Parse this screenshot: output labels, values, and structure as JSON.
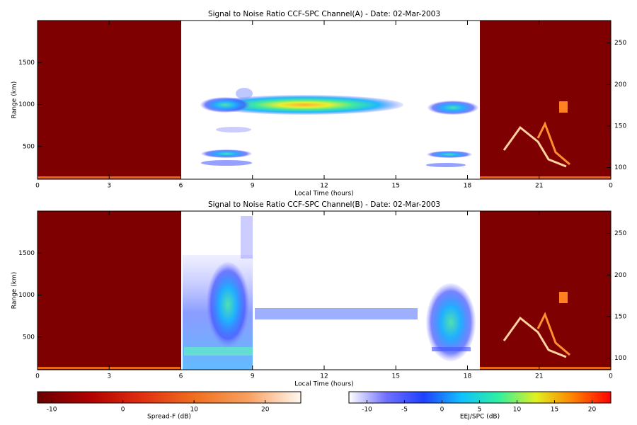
{
  "chart_data": [
    {
      "type": "heatmap",
      "title": "Signal to Noise Ratio CCF-SPC Channel(A) - Date: 02-Mar-2003",
      "xlabel": "Local Time (hours)",
      "ylabel": "Range (km)",
      "xlim": [
        0,
        24
      ],
      "xticks": [
        0,
        3,
        6,
        9,
        12,
        15,
        18,
        21,
        {
          "value": 24,
          "label": "0"
        }
      ],
      "ylim": [
        110,
        2000
      ],
      "yticks": [
        500,
        1000,
        1500
      ],
      "y2lim": [
        86,
        277
      ],
      "y2ticks": [
        100,
        150,
        200,
        250
      ]
    },
    {
      "type": "heatmap",
      "title": "Signal to Noise Ratio CCF-SPC Channel(B) - Date: 02-Mar-2003",
      "xlabel": "Local Time (hours)",
      "ylabel": "Range (km)",
      "xlim": [
        0,
        24
      ],
      "xticks": [
        0,
        3,
        6,
        9,
        12,
        15,
        18,
        21,
        {
          "value": 24,
          "label": "0"
        }
      ],
      "ylim": [
        110,
        2000
      ],
      "yticks": [
        500,
        1000,
        1500
      ],
      "y2lim": [
        86,
        277
      ],
      "y2ticks": [
        100,
        150,
        200,
        250
      ]
    },
    {
      "type": "colorbar",
      "label": "Spread-F (dB)",
      "xlim": [
        -12,
        25
      ],
      "xticks": [
        -10,
        0,
        10,
        20
      ],
      "colors": [
        "#6a0000",
        "#b00000",
        "#e03010",
        "#f07020",
        "#f8a060",
        "#fff8f0"
      ]
    },
    {
      "type": "colorbar",
      "label": "EEJ/SPC (dB)",
      "xlim": [
        -12.4,
        22.5
      ],
      "xticks": [
        -10,
        -5,
        0,
        5,
        10,
        15,
        20
      ],
      "colors": [
        "#ffffff",
        "#7070ff",
        "#2040ff",
        "#10c0ff",
        "#30f0a0",
        "#e0f020",
        "#ff8000",
        "#ff0000"
      ]
    }
  ]
}
